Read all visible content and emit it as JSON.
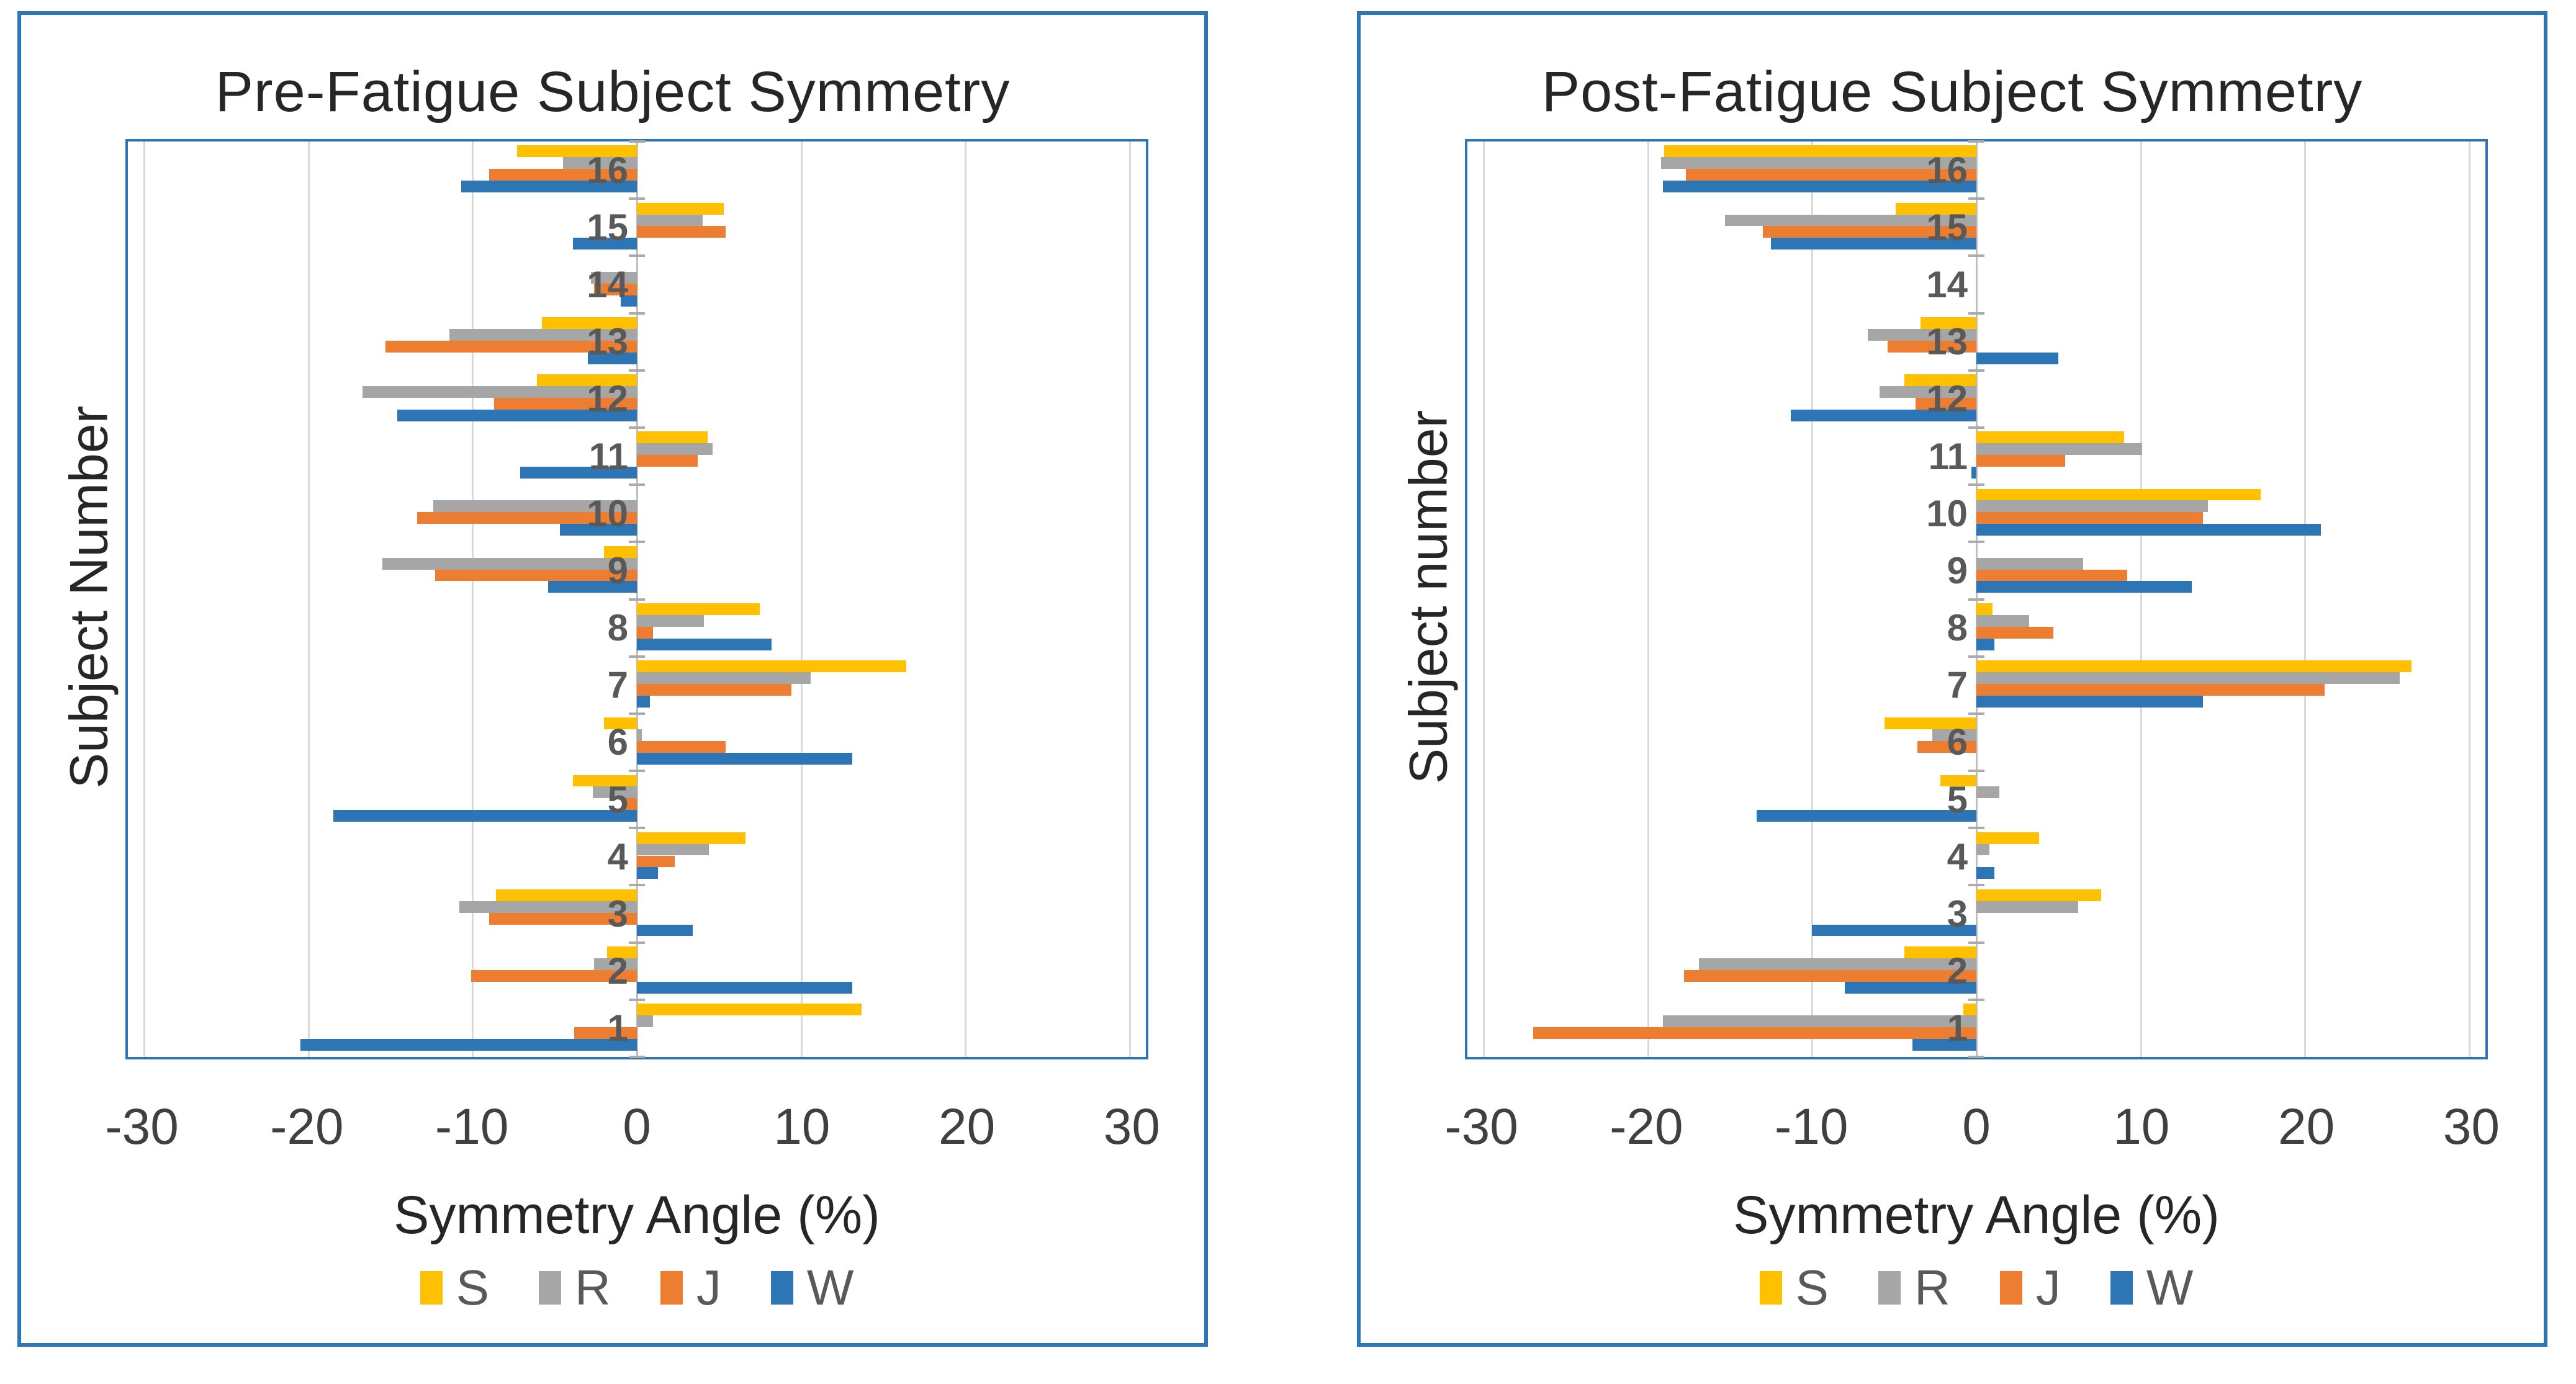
{
  "accent_color": "#2E75B6",
  "charts": [
    {
      "title": "Pre-Fatigue Subject Symmetry",
      "ylabel": "Subject Number",
      "xlabel": "Symmetry Angle (%)"
    },
    {
      "title": "Post-Fatigue Subject Symmetry",
      "ylabel": "Subject number",
      "xlabel": "Symmetry  Angle (%)"
    }
  ],
  "chart_data": [
    {
      "type": "bar",
      "orientation": "horizontal",
      "title": "Pre-Fatigue Subject Symmetry",
      "xlabel": "Symmetry Angle (%)",
      "ylabel": "Subject Number",
      "xlim": [
        -31,
        31
      ],
      "xticks": [
        -30,
        -20,
        -10,
        0,
        10,
        20,
        30
      ],
      "grid": true,
      "legend_position": "bottom",
      "categories": [
        16,
        15,
        14,
        13,
        12,
        11,
        10,
        9,
        8,
        7,
        6,
        5,
        4,
        3,
        2,
        1
      ],
      "series": [
        {
          "name": "S",
          "color": "#FFC000",
          "values": [
            -7.3,
            5.3,
            0,
            -5.8,
            -6.1,
            4.3,
            0,
            -2.0,
            7.5,
            16.4,
            -2.0,
            -3.9,
            6.6,
            -8.6,
            -1.8,
            13.7
          ]
        },
        {
          "name": "R",
          "color": "#A6A6A6",
          "values": [
            -4.5,
            4.0,
            -2.8,
            -11.4,
            -16.7,
            4.6,
            -12.4,
            -15.5,
            4.1,
            10.6,
            0.3,
            -2.7,
            4.4,
            -10.8,
            -2.6,
            1.0
          ]
        },
        {
          "name": "J",
          "color": "#ED7D31",
          "values": [
            -9.0,
            5.4,
            -2.6,
            -15.3,
            -8.7,
            3.7,
            -13.4,
            -12.3,
            1.0,
            9.4,
            5.4,
            -0.9,
            2.3,
            -9.0,
            -10.1,
            -3.8
          ]
        },
        {
          "name": "W",
          "color": "#2E75B6",
          "values": [
            -10.7,
            -3.9,
            -1.0,
            -3.0,
            -14.6,
            -7.1,
            -4.7,
            -5.4,
            8.2,
            0.8,
            13.1,
            -18.5,
            1.3,
            3.4,
            13.1,
            -20.5
          ]
        }
      ]
    },
    {
      "type": "bar",
      "orientation": "horizontal",
      "title": "Post-Fatigue Subject Symmetry",
      "xlabel": "Symmetry  Angle (%)",
      "ylabel": "Subject number",
      "xlim": [
        -31,
        31
      ],
      "xticks": [
        -30,
        -20,
        -10,
        0,
        10,
        20,
        30
      ],
      "grid": true,
      "legend_position": "bottom",
      "categories": [
        16,
        15,
        14,
        13,
        12,
        11,
        10,
        9,
        8,
        7,
        6,
        5,
        4,
        3,
        2,
        1
      ],
      "series": [
        {
          "name": "S",
          "color": "#FFC000",
          "values": [
            -19.0,
            -4.9,
            0,
            -3.4,
            -4.4,
            9.0,
            17.3,
            0,
            1.0,
            26.5,
            -5.6,
            -2.2,
            3.8,
            7.6,
            -4.4,
            -0.8
          ]
        },
        {
          "name": "R",
          "color": "#A6A6A6",
          "values": [
            -19.2,
            -15.3,
            0,
            -6.6,
            -5.9,
            10.1,
            14.1,
            6.5,
            3.2,
            25.8,
            -2.7,
            1.4,
            0.8,
            6.2,
            -16.9,
            -19.1
          ]
        },
        {
          "name": "J",
          "color": "#ED7D31",
          "values": [
            -17.7,
            -13.0,
            0,
            -5.4,
            -3.7,
            5.4,
            13.8,
            9.2,
            4.7,
            21.2,
            -3.6,
            0,
            0,
            0,
            -17.8,
            -27.0
          ]
        },
        {
          "name": "W",
          "color": "#2E75B6",
          "values": [
            -19.1,
            -12.5,
            0,
            5.0,
            -11.3,
            -0.3,
            21.0,
            13.1,
            1.1,
            13.8,
            0,
            -13.4,
            1.1,
            -10.0,
            -8.0,
            -3.9
          ]
        }
      ]
    }
  ]
}
